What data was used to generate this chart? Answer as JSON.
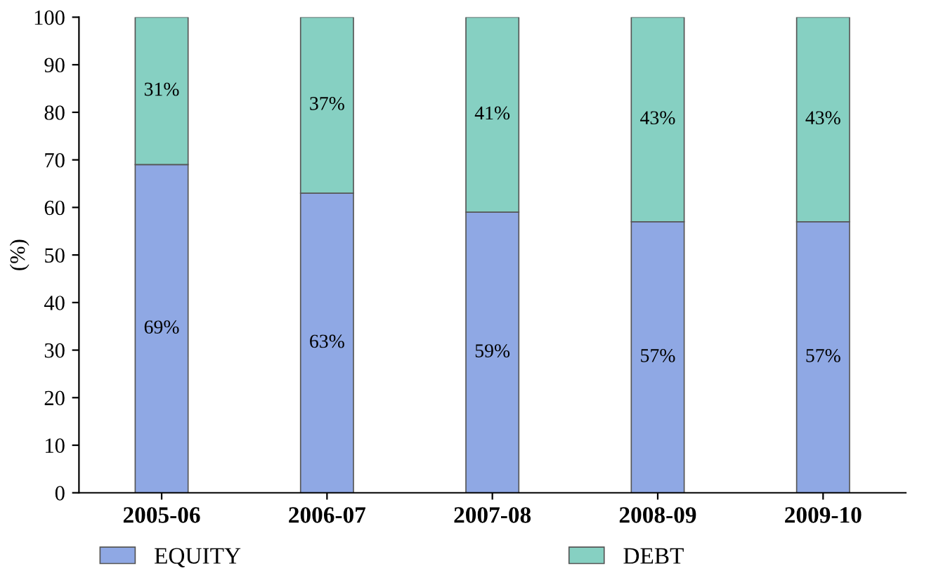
{
  "chart_data": {
    "type": "bar",
    "stacked": true,
    "ylabel": "(%)",
    "categories": [
      "2005-06",
      "2006-07",
      "2007-08",
      "2008-09",
      "2009-10"
    ],
    "series": [
      {
        "name": "EQUITY",
        "color": "#8fa8e4",
        "values": [
          69,
          63,
          59,
          57,
          57
        ],
        "value_labels": [
          "69%",
          "63%",
          "59%",
          "57%",
          "57%"
        ]
      },
      {
        "name": "DEBT",
        "color": "#86d0c2",
        "values": [
          31,
          37,
          41,
          43,
          43
        ],
        "value_labels": [
          "31%",
          "37%",
          "41%",
          "43%",
          "43%"
        ]
      }
    ],
    "ylim": [
      0,
      100
    ],
    "yticks": [
      0,
      10,
      20,
      30,
      40,
      50,
      60,
      70,
      80,
      90,
      100
    ],
    "grid": false,
    "legend": "bottom left"
  }
}
